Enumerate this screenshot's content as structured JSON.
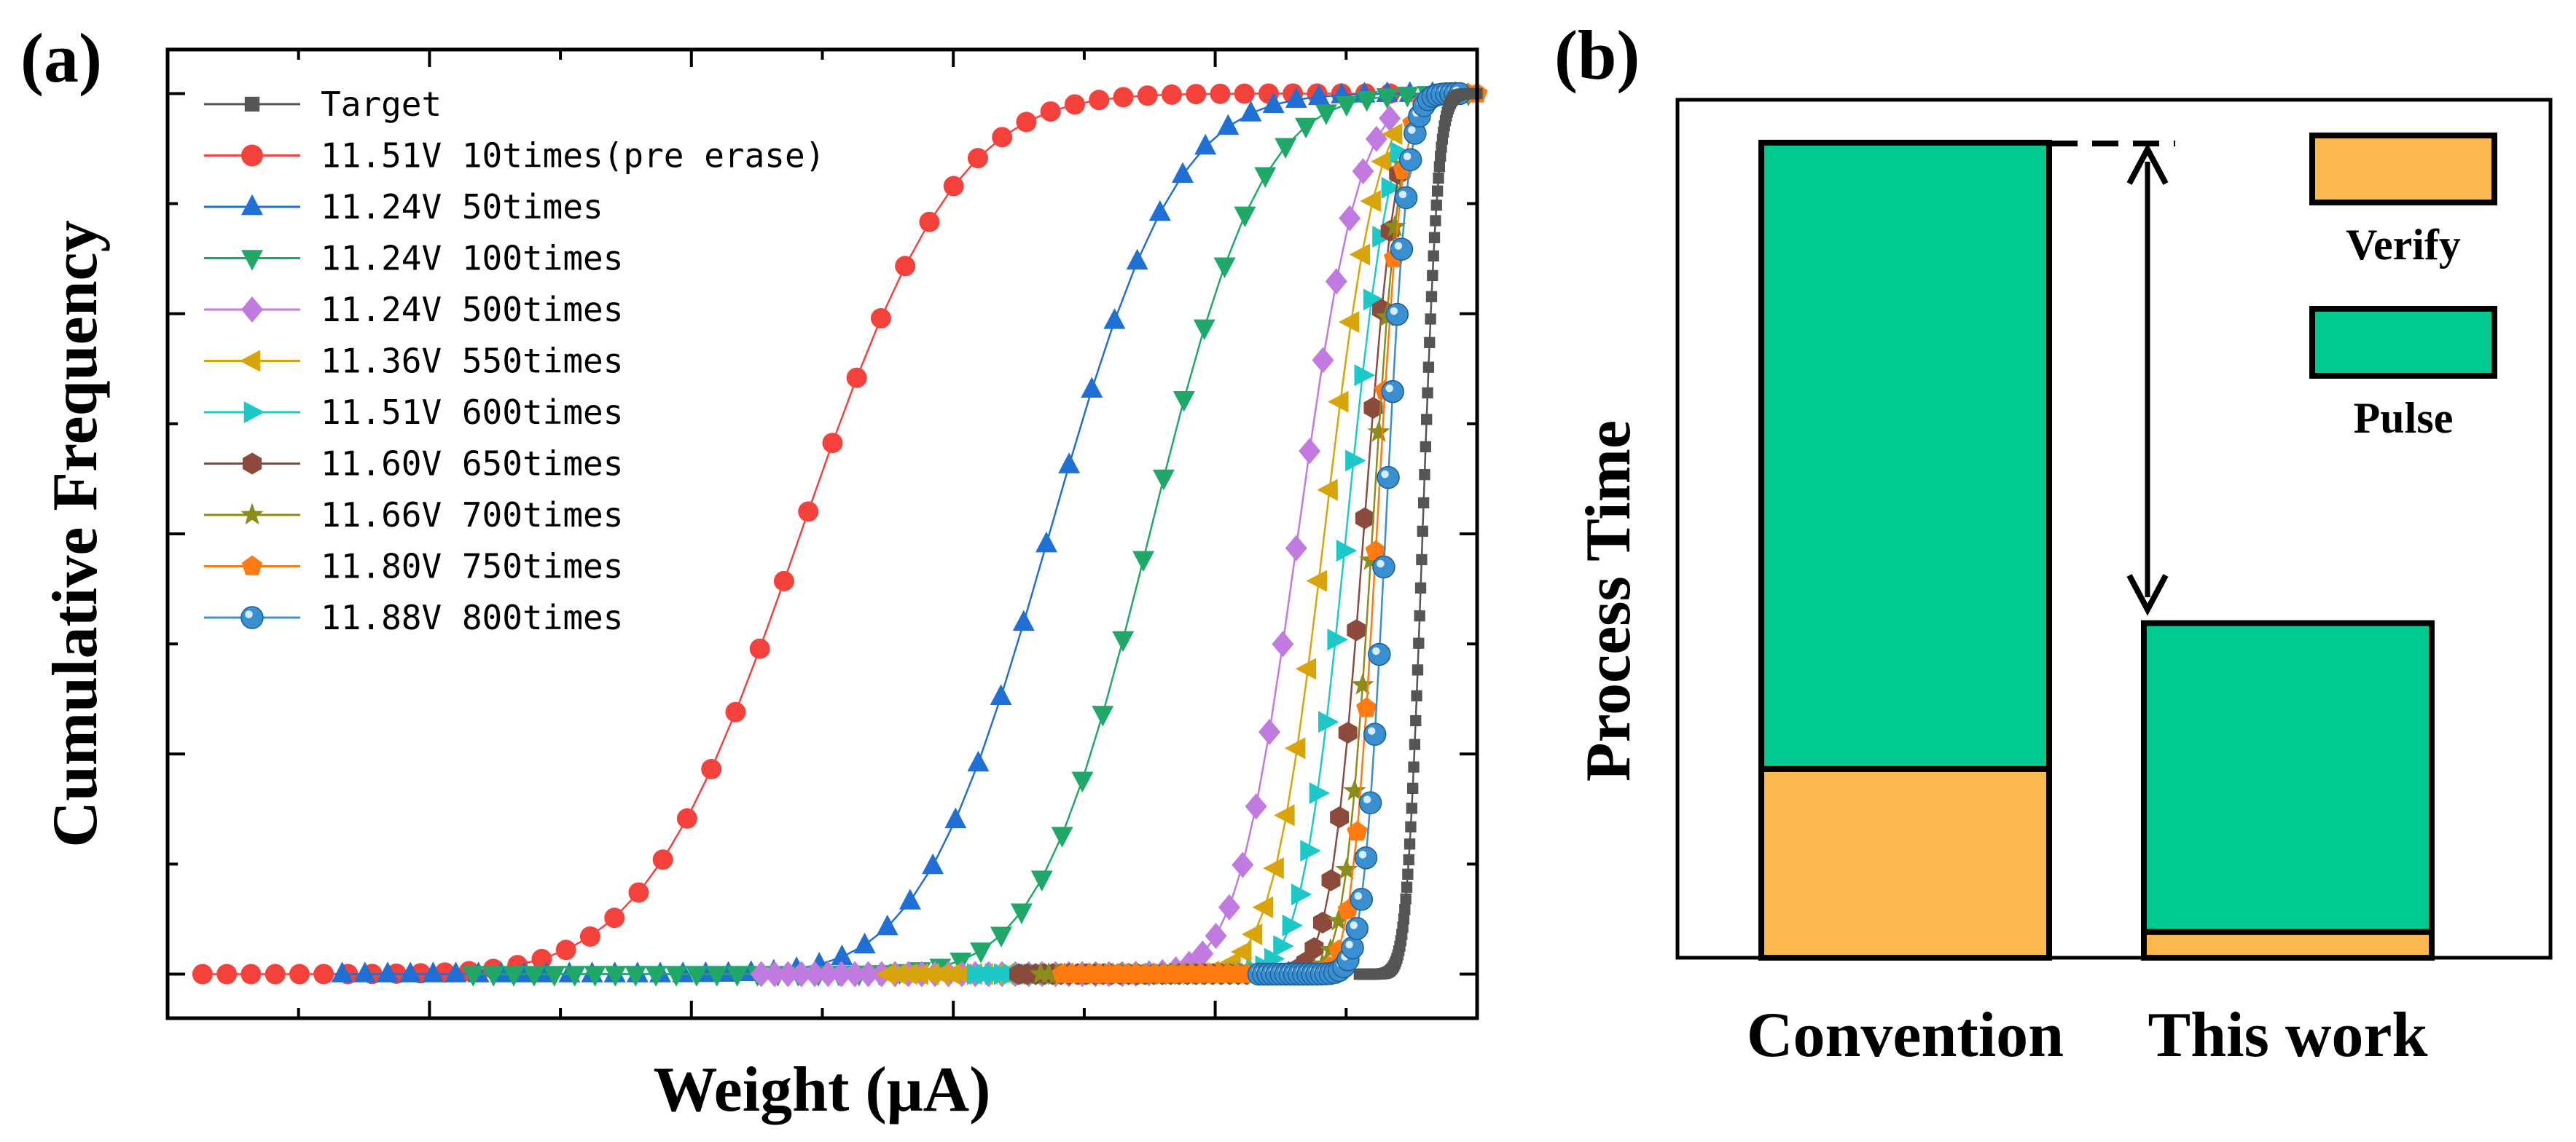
{
  "panel_a_label": "(a)",
  "panel_b_label": "(b)",
  "chart_data": [
    {
      "type": "line",
      "xlabel": "Weight (μA)",
      "ylabel": "Cumulative Frequency",
      "xlim": [
        0,
        30
      ],
      "ylim": [
        -0.05,
        1.05
      ],
      "legend_position": "top-left",
      "series": [
        {
          "name": "Target",
          "color": "#555555",
          "marker": "square",
          "mu": 28.75,
          "sigma": 0.28,
          "xmin": 27.3,
          "xmax": 30.0
        },
        {
          "name": "11.51V 10times(pre erase)",
          "color": "#f5413c",
          "marker": "circle",
          "mu": 14.5,
          "sigma": 2.8,
          "xmin": 0.8,
          "xmax": 28.0
        },
        {
          "name": "11.24V 50times",
          "color": "#1f6fd4",
          "marker": "triangle-up",
          "mu": 20.2,
          "sigma": 2.3,
          "xmin": 4.0,
          "xmax": 29.5
        },
        {
          "name": "11.24V 100times",
          "color": "#1fa868",
          "marker": "triangle-down",
          "mu": 22.5,
          "sigma": 2.0,
          "xmin": 7.0,
          "xmax": 29.8
        },
        {
          "name": "11.24V 500times",
          "color": "#c07ae0",
          "marker": "diamond",
          "mu": 25.9,
          "sigma": 1.1,
          "xmin": 13.6,
          "xmax": 28.0
        },
        {
          "name": "11.36V 550times",
          "color": "#d9a30a",
          "marker": "triangle-left",
          "mu": 26.5,
          "sigma": 0.95,
          "xmin": 16.5,
          "xmax": 28.1
        },
        {
          "name": "11.51V 600times",
          "color": "#1cc8c8",
          "marker": "triangle-right",
          "mu": 27.0,
          "sigma": 0.8,
          "xmin": 18.5,
          "xmax": 28.2
        },
        {
          "name": "11.60V 650times",
          "color": "#8b4a3c",
          "marker": "hexagon",
          "mu": 27.4,
          "sigma": 0.6,
          "xmin": 19.5,
          "xmax": 28.2
        },
        {
          "name": "11.66V 700times",
          "color": "#8c8c1a",
          "marker": "star",
          "mu": 27.6,
          "sigma": 0.5,
          "xmin": 20.0,
          "xmax": 28.3
        },
        {
          "name": "11.80V 750times",
          "color": "#ff7a10",
          "marker": "pentagon",
          "mu": 27.7,
          "sigma": 0.45,
          "xmin": 20.5,
          "xmax": 30.0
        },
        {
          "name": "11.88V 800times",
          "color": "#3a8fd0",
          "marker": "sphere",
          "mu": 27.9,
          "sigma": 0.4,
          "xmin": 25.0,
          "xmax": 29.6
        }
      ]
    },
    {
      "type": "bar",
      "stacked": true,
      "ylabel": "Process Time",
      "categories": [
        "Convention",
        "This work"
      ],
      "series": [
        {
          "name": "Verify",
          "color": "#fbb84f",
          "values": [
            0.22,
            0.03
          ]
        },
        {
          "name": "Pulse",
          "color": "#00c98f",
          "values": [
            0.73,
            0.36
          ]
        }
      ],
      "ylim": [
        0,
        1
      ],
      "legend_position": "top-right"
    }
  ]
}
